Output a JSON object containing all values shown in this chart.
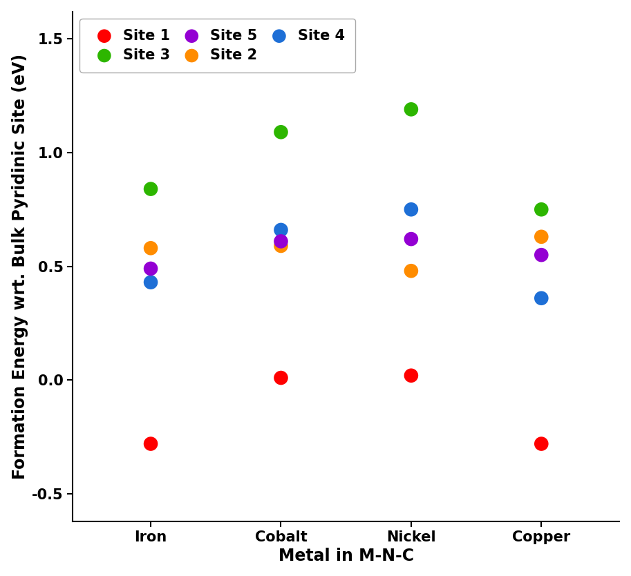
{
  "metals": [
    "Iron",
    "Cobalt",
    "Nickel",
    "Copper"
  ],
  "sites_ordered": [
    "Site 1",
    "Site 2",
    "Site 3",
    "Site 4",
    "Site 5"
  ],
  "legend_order": [
    0,
    2,
    4,
    1,
    3
  ],
  "sites": {
    "Site 1": {
      "color": "#FF0000",
      "values": [
        -0.28,
        0.01,
        0.02,
        -0.28
      ]
    },
    "Site 2": {
      "color": "#FF8C00",
      "values": [
        0.58,
        0.59,
        0.48,
        0.63
      ]
    },
    "Site 3": {
      "color": "#2DB600",
      "values": [
        0.84,
        1.09,
        1.19,
        0.75
      ]
    },
    "Site 4": {
      "color": "#1E6FD6",
      "values": [
        0.43,
        0.66,
        0.75,
        0.36
      ]
    },
    "Site 5": {
      "color": "#9400D3",
      "values": [
        0.49,
        0.61,
        0.62,
        0.55
      ]
    }
  },
  "xlabel": "Metal in M-N-C",
  "ylabel": "Formation Energy wrt. Bulk Pyridinic Site (eV)",
  "ylim": [
    -0.62,
    1.62
  ],
  "yticks": [
    -0.5,
    0.0,
    0.5,
    1.0,
    1.5
  ],
  "ytick_labels": [
    "-0.5",
    "0.0",
    "0.5",
    "1.0",
    "1.5"
  ],
  "marker_size": 220,
  "background_color": "#ffffff",
  "label_fontsize": 17,
  "tick_fontsize": 15,
  "legend_fontsize": 15
}
